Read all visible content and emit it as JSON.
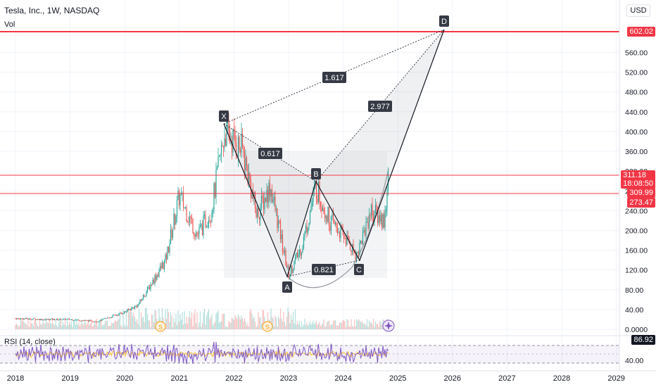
{
  "legend": {
    "title": "Tesla, Inc., 1W, NASDAQ",
    "vol": "Vol"
  },
  "currency": "USD",
  "rsi": {
    "label": "RSI (14, close)",
    "value": "86.92",
    "axis_tick": "40.00"
  },
  "price_tags": {
    "target": "602.02",
    "last": "311.18",
    "countdown": "18:08:50",
    "tag2": "309.99",
    "tag3": "273.47"
  },
  "pattern": {
    "points": {
      "X": "X",
      "A": "A",
      "B": "B",
      "C": "C",
      "D": "D"
    },
    "ratios": {
      "xb": "0.617",
      "ac": "0.821",
      "bd": "2.977",
      "xd": "1.617"
    }
  },
  "events": {
    "s1": "S",
    "s2": "S"
  },
  "colors": {
    "up": "#26a69a",
    "down": "#ef5350",
    "rsi": "#7e57c2",
    "line": "#131722",
    "redline": "#f23645"
  },
  "chart_data": {
    "type": "candlestick",
    "title": "Tesla, Inc., 1W, NASDAQ",
    "y_axis": {
      "ticks": [
        "560.00",
        "520.00",
        "480.00",
        "440.00",
        "400.00",
        "360.00",
        "320.00",
        "280.00",
        "240.00",
        "200.00",
        "160.00",
        "120.00",
        "80.00",
        "40.00",
        "0.0000"
      ],
      "ylim": [
        0,
        640
      ]
    },
    "x_axis": {
      "ticks": [
        "2018",
        "2019",
        "2020",
        "2021",
        "2022",
        "2023",
        "2024",
        "2025",
        "2026",
        "2027",
        "2028",
        "2029"
      ]
    },
    "harmonic_pattern": [
      {
        "label": "X",
        "date": "2021-11",
        "price": 414
      },
      {
        "label": "A",
        "date": "2023-01",
        "price": 102
      },
      {
        "label": "B",
        "date": "2023-07",
        "price": 299
      },
      {
        "label": "C",
        "date": "2024-04",
        "price": 139
      },
      {
        "label": "D",
        "date": "2025-12",
        "price": 602
      }
    ],
    "horizontal_levels": [
      602.02,
      311.18,
      273.47
    ],
    "approx_weekly_close": [
      {
        "date": "2018-01",
        "close": 22
      },
      {
        "date": "2018-07",
        "close": 20
      },
      {
        "date": "2019-01",
        "close": 20
      },
      {
        "date": "2019-07",
        "close": 16
      },
      {
        "date": "2020-01",
        "close": 35
      },
      {
        "date": "2020-04",
        "close": 50
      },
      {
        "date": "2020-07",
        "close": 95
      },
      {
        "date": "2020-10",
        "close": 140
      },
      {
        "date": "2021-01",
        "close": 270
      },
      {
        "date": "2021-05",
        "close": 190
      },
      {
        "date": "2021-08",
        "close": 240
      },
      {
        "date": "2021-11",
        "close": 400
      },
      {
        "date": "2022-03",
        "close": 360
      },
      {
        "date": "2022-06",
        "close": 230
      },
      {
        "date": "2022-09",
        "close": 290
      },
      {
        "date": "2023-01",
        "close": 110
      },
      {
        "date": "2023-04",
        "close": 170
      },
      {
        "date": "2023-07",
        "close": 290
      },
      {
        "date": "2023-10",
        "close": 220
      },
      {
        "date": "2024-01",
        "close": 190
      },
      {
        "date": "2024-04",
        "close": 150
      },
      {
        "date": "2024-07",
        "close": 240
      },
      {
        "date": "2024-10",
        "close": 220
      },
      {
        "date": "2024-11",
        "close": 311
      }
    ]
  }
}
